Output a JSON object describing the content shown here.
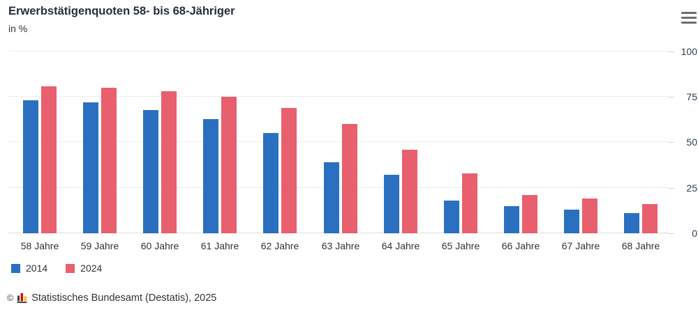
{
  "header": {
    "title": "Erwerbstätigenquoten 58- bis 68-Jähriger",
    "subtitle": "in %"
  },
  "toolbar": {
    "menu_icon": "hamburger-icon"
  },
  "chart_data": {
    "type": "bar",
    "title": "Erwerbstätigenquoten 58- bis 68-Jähriger",
    "ylabel": "in %",
    "categories": [
      "58 Jahre",
      "59 Jahre",
      "60 Jahre",
      "61 Jahre",
      "62 Jahre",
      "63 Jahre",
      "64 Jahre",
      "65 Jahre",
      "66 Jahre",
      "67 Jahre",
      "68 Jahre"
    ],
    "series": [
      {
        "name": "2014",
        "color": "#2b70c0",
        "values": [
          73,
          72,
          68,
          63,
          55,
          39,
          32,
          18,
          15,
          13,
          11
        ]
      },
      {
        "name": "2024",
        "color": "#e85f6e",
        "values": [
          81,
          80,
          78,
          75,
          69,
          60,
          46,
          33,
          21,
          19,
          16
        ]
      }
    ],
    "ylim": [
      0,
      100
    ],
    "yticks": [
      0,
      25,
      50,
      75,
      100
    ],
    "y_axis_side": "right",
    "grid": true,
    "legend_position": "bottom-left"
  },
  "footer": {
    "copyright": "©",
    "logo_icon": "destatis-mini-bar-chart-icon",
    "logo_colors": [
      "#3c3c3b",
      "#e10019",
      "#fdc300"
    ],
    "source": "Statistisches Bundesamt (Destatis), 2025"
  }
}
